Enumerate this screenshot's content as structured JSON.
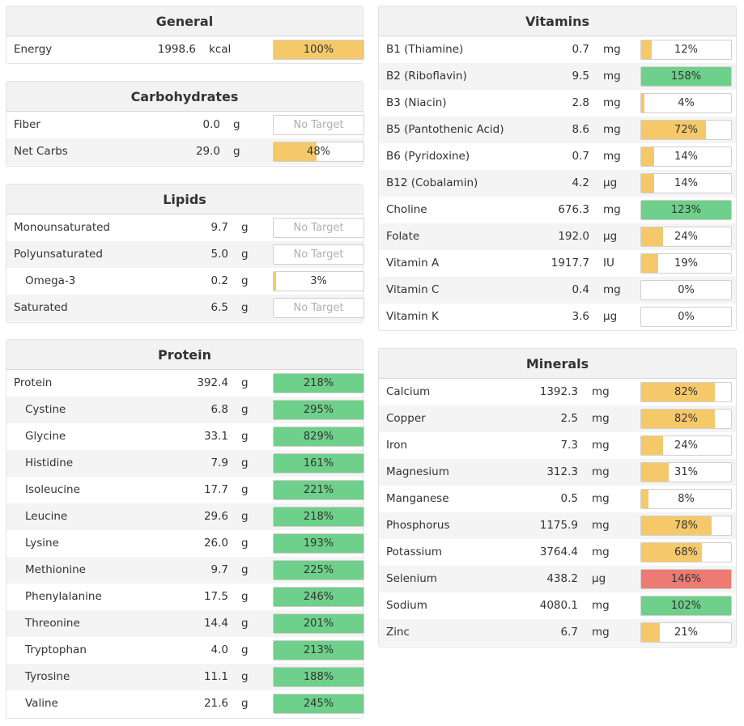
{
  "colors": {
    "yellow": "#f5c96a",
    "green": "#6ed08a",
    "red": "#ec7b73"
  },
  "panels": {
    "general": {
      "title": "General",
      "rows": [
        {
          "name": "Energy",
          "amount": "1998.6",
          "unit": "kcal",
          "pct": "100%",
          "fill": 1.0,
          "color": "yellow"
        }
      ]
    },
    "carbohydrates": {
      "title": "Carbohydrates",
      "rows": [
        {
          "name": "Fiber",
          "amount": "0.0",
          "unit": "g",
          "pct": "No Target",
          "fill": 0,
          "color": "none"
        },
        {
          "name": "Net Carbs",
          "amount": "29.0",
          "unit": "g",
          "pct": "48%",
          "fill": 0.48,
          "color": "yellow"
        }
      ]
    },
    "lipids": {
      "title": "Lipids",
      "rows": [
        {
          "name": "Monounsaturated",
          "amount": "9.7",
          "unit": "g",
          "pct": "No Target",
          "fill": 0,
          "color": "none"
        },
        {
          "name": "Polyunsaturated",
          "amount": "5.0",
          "unit": "g",
          "pct": "No Target",
          "fill": 0,
          "color": "none"
        },
        {
          "name": "Omega-3",
          "amount": "0.2",
          "unit": "g",
          "pct": "3%",
          "fill": 0.03,
          "color": "yellow",
          "indent": true
        },
        {
          "name": "Saturated",
          "amount": "6.5",
          "unit": "g",
          "pct": "No Target",
          "fill": 0,
          "color": "none"
        }
      ]
    },
    "protein": {
      "title": "Protein",
      "rows": [
        {
          "name": "Protein",
          "amount": "392.4",
          "unit": "g",
          "pct": "218%",
          "fill": 1.0,
          "color": "green"
        },
        {
          "name": "Cystine",
          "amount": "6.8",
          "unit": "g",
          "pct": "295%",
          "fill": 1.0,
          "color": "green",
          "indent": true
        },
        {
          "name": "Glycine",
          "amount": "33.1",
          "unit": "g",
          "pct": "829%",
          "fill": 1.0,
          "color": "green",
          "indent": true
        },
        {
          "name": "Histidine",
          "amount": "7.9",
          "unit": "g",
          "pct": "161%",
          "fill": 1.0,
          "color": "green",
          "indent": true
        },
        {
          "name": "Isoleucine",
          "amount": "17.7",
          "unit": "g",
          "pct": "221%",
          "fill": 1.0,
          "color": "green",
          "indent": true
        },
        {
          "name": "Leucine",
          "amount": "29.6",
          "unit": "g",
          "pct": "218%",
          "fill": 1.0,
          "color": "green",
          "indent": true
        },
        {
          "name": "Lysine",
          "amount": "26.0",
          "unit": "g",
          "pct": "193%",
          "fill": 1.0,
          "color": "green",
          "indent": true
        },
        {
          "name": "Methionine",
          "amount": "9.7",
          "unit": "g",
          "pct": "225%",
          "fill": 1.0,
          "color": "green",
          "indent": true
        },
        {
          "name": "Phenylalanine",
          "amount": "17.5",
          "unit": "g",
          "pct": "246%",
          "fill": 1.0,
          "color": "green",
          "indent": true
        },
        {
          "name": "Threonine",
          "amount": "14.4",
          "unit": "g",
          "pct": "201%",
          "fill": 1.0,
          "color": "green",
          "indent": true
        },
        {
          "name": "Tryptophan",
          "amount": "4.0",
          "unit": "g",
          "pct": "213%",
          "fill": 1.0,
          "color": "green",
          "indent": true
        },
        {
          "name": "Tyrosine",
          "amount": "11.1",
          "unit": "g",
          "pct": "188%",
          "fill": 1.0,
          "color": "green",
          "indent": true
        },
        {
          "name": "Valine",
          "amount": "21.6",
          "unit": "g",
          "pct": "245%",
          "fill": 1.0,
          "color": "green",
          "indent": true
        }
      ]
    },
    "vitamins": {
      "title": "Vitamins",
      "rows": [
        {
          "name": "B1 (Thiamine)",
          "amount": "0.7",
          "unit": "mg",
          "pct": "12%",
          "fill": 0.12,
          "color": "yellow"
        },
        {
          "name": "B2 (Riboflavin)",
          "amount": "9.5",
          "unit": "mg",
          "pct": "158%",
          "fill": 1.0,
          "color": "green"
        },
        {
          "name": "B3 (Niacin)",
          "amount": "2.8",
          "unit": "mg",
          "pct": "4%",
          "fill": 0.04,
          "color": "yellow"
        },
        {
          "name": "B5 (Pantothenic Acid)",
          "amount": "8.6",
          "unit": "mg",
          "pct": "72%",
          "fill": 0.72,
          "color": "yellow"
        },
        {
          "name": "B6 (Pyridoxine)",
          "amount": "0.7",
          "unit": "mg",
          "pct": "14%",
          "fill": 0.14,
          "color": "yellow"
        },
        {
          "name": "B12 (Cobalamin)",
          "amount": "4.2",
          "unit": "µg",
          "pct": "14%",
          "fill": 0.14,
          "color": "yellow"
        },
        {
          "name": "Choline",
          "amount": "676.3",
          "unit": "mg",
          "pct": "123%",
          "fill": 1.0,
          "color": "green"
        },
        {
          "name": "Folate",
          "amount": "192.0",
          "unit": "µg",
          "pct": "24%",
          "fill": 0.24,
          "color": "yellow"
        },
        {
          "name": "Vitamin A",
          "amount": "1917.7",
          "unit": "IU",
          "pct": "19%",
          "fill": 0.19,
          "color": "yellow"
        },
        {
          "name": "Vitamin C",
          "amount": "0.4",
          "unit": "mg",
          "pct": "0%",
          "fill": 0,
          "color": "yellow"
        },
        {
          "name": "Vitamin K",
          "amount": "3.6",
          "unit": "µg",
          "pct": "0%",
          "fill": 0,
          "color": "yellow"
        }
      ]
    },
    "minerals": {
      "title": "Minerals",
      "rows": [
        {
          "name": "Calcium",
          "amount": "1392.3",
          "unit": "mg",
          "pct": "82%",
          "fill": 0.82,
          "color": "yellow"
        },
        {
          "name": "Copper",
          "amount": "2.5",
          "unit": "mg",
          "pct": "82%",
          "fill": 0.82,
          "color": "yellow"
        },
        {
          "name": "Iron",
          "amount": "7.3",
          "unit": "mg",
          "pct": "24%",
          "fill": 0.24,
          "color": "yellow"
        },
        {
          "name": "Magnesium",
          "amount": "312.3",
          "unit": "mg",
          "pct": "31%",
          "fill": 0.31,
          "color": "yellow"
        },
        {
          "name": "Manganese",
          "amount": "0.5",
          "unit": "mg",
          "pct": "8%",
          "fill": 0.08,
          "color": "yellow"
        },
        {
          "name": "Phosphorus",
          "amount": "1175.9",
          "unit": "mg",
          "pct": "78%",
          "fill": 0.78,
          "color": "yellow"
        },
        {
          "name": "Potassium",
          "amount": "3764.4",
          "unit": "mg",
          "pct": "68%",
          "fill": 0.68,
          "color": "yellow"
        },
        {
          "name": "Selenium",
          "amount": "438.2",
          "unit": "µg",
          "pct": "146%",
          "fill": 1.0,
          "color": "red"
        },
        {
          "name": "Sodium",
          "amount": "4080.1",
          "unit": "mg",
          "pct": "102%",
          "fill": 1.0,
          "color": "green"
        },
        {
          "name": "Zinc",
          "amount": "6.7",
          "unit": "mg",
          "pct": "21%",
          "fill": 0.21,
          "color": "yellow"
        }
      ]
    }
  }
}
